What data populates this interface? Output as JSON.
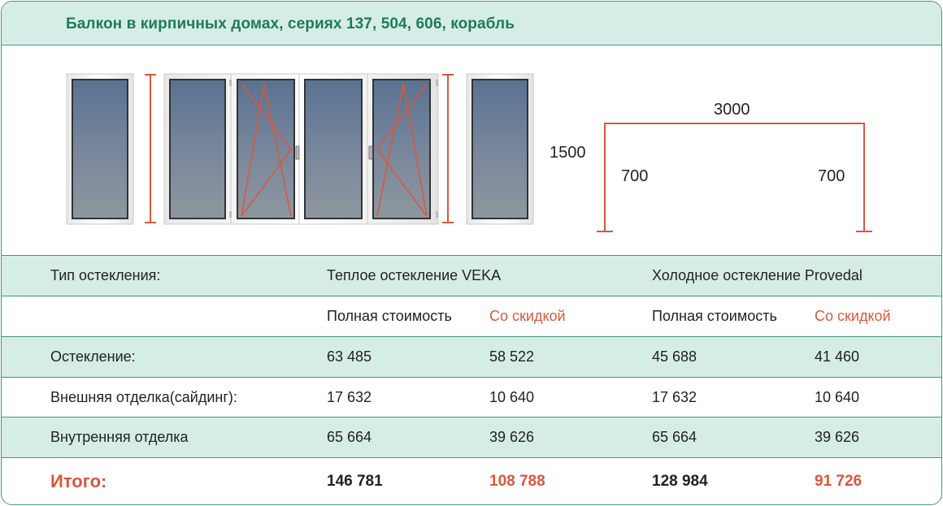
{
  "header": {
    "title": "Балкон в кирпичных домах, сериях 137, 504, 606, корабль"
  },
  "dimensions": {
    "height": "1500",
    "width": "3000",
    "left_side": "700",
    "right_side": "700"
  },
  "colors": {
    "accent": "#3f9a7a",
    "header_bg": "#d6ede7",
    "discount": "#d9573e",
    "title": "#1f7a5c"
  },
  "table": {
    "type_label": "Тип остекления:",
    "warm": "Теплое остекление VEKA",
    "cold": "Холодное остекление Provedal",
    "full_price": "Полная стоимость",
    "discount": "Со скидкой",
    "rows": [
      {
        "label": "Остекление:",
        "warm_full": "63 485",
        "warm_disc": "58 522",
        "cold_full": "45 688",
        "cold_disc": "41 460"
      },
      {
        "label": "Внешняя отделка(сайдинг):",
        "warm_full": "17 632",
        "warm_disc": "10 640",
        "cold_full": "17 632",
        "cold_disc": "10 640"
      },
      {
        "label": "Внутренняя отделка",
        "warm_full": "65 664",
        "warm_disc": "39 626",
        "cold_full": "65 664",
        "cold_disc": "39 626"
      }
    ],
    "total": {
      "label": "Итого:",
      "warm_full": "146 781",
      "warm_disc": "108 788",
      "cold_full": "128 984",
      "cold_disc": "91 726"
    }
  }
}
